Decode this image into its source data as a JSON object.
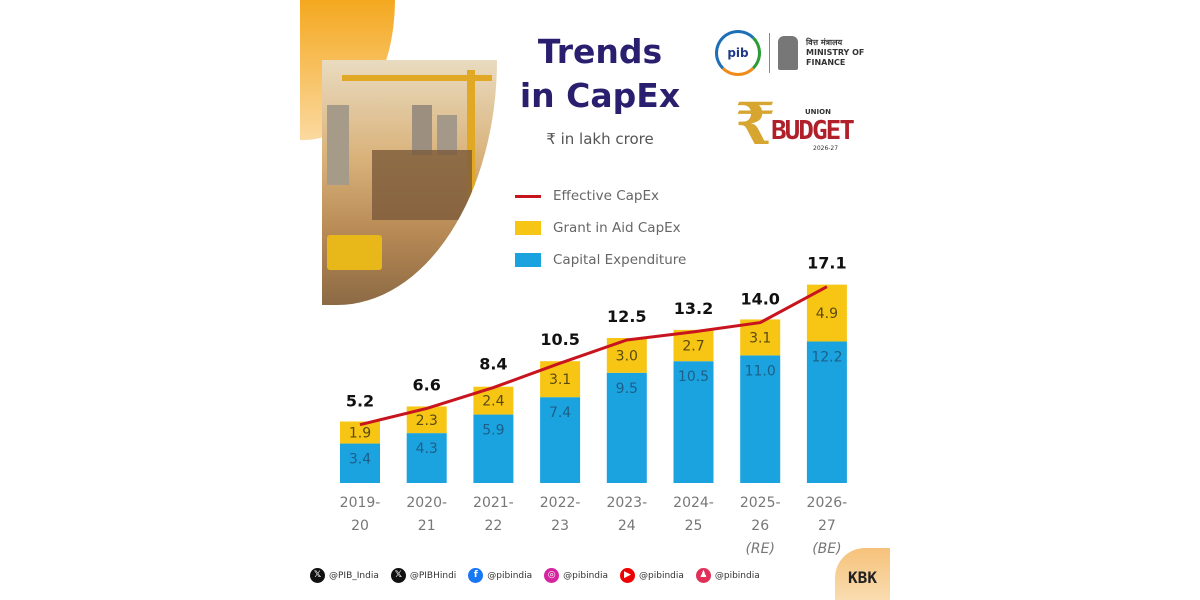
{
  "header": {
    "title_line1": "Trends",
    "title_line2": "in CapEx",
    "unit": "₹ in lakh crore"
  },
  "logos": {
    "pib": "pib",
    "ministry": "MINISTRY OF FINANCE",
    "ministry_hindi": "वित्त मंत्रालय",
    "budget_union": "UNION",
    "budget_word": "BUDGET",
    "budget_year": "2026-27"
  },
  "colors": {
    "capital": "#1ba3e0",
    "grant": "#f7c514",
    "effective": "#c8141e",
    "title": "#2a1f6e"
  },
  "chart_data": {
    "type": "bar",
    "stacked": true,
    "categories": [
      [
        "2019-",
        "20"
      ],
      [
        "2020-",
        "21"
      ],
      [
        "2021-",
        "22"
      ],
      [
        "2022-",
        "23"
      ],
      [
        "2023-",
        "24"
      ],
      [
        "2024-",
        "25"
      ],
      [
        "2025-",
        "26",
        "(RE)"
      ],
      [
        "2026-",
        "27",
        "(BE)"
      ]
    ],
    "series": [
      {
        "name": "Capital Expenditure",
        "type": "bar",
        "values": [
          3.4,
          4.3,
          5.9,
          7.4,
          9.5,
          10.5,
          11.0,
          12.2
        ]
      },
      {
        "name": "Grant in Aid CapEx",
        "type": "bar",
        "values": [
          1.9,
          2.3,
          2.4,
          3.1,
          3.0,
          2.7,
          3.1,
          4.9
        ]
      },
      {
        "name": "Effective CapEx",
        "type": "line",
        "values": [
          5.2,
          6.6,
          8.4,
          10.5,
          12.5,
          13.2,
          14.0,
          17.1
        ]
      }
    ],
    "value_labels": {
      "capital": [
        "3.4",
        "4.3",
        "5.9",
        "7.4",
        "9.5",
        "10.5",
        "11.0",
        "12.2"
      ],
      "grant": [
        "1.9",
        "2.3",
        "2.4",
        "3.1",
        "3.0",
        "2.7",
        "3.1",
        "4.9"
      ],
      "total": [
        "5.2",
        "6.6",
        "8.4",
        "10.5",
        "12.5",
        "13.2",
        "14.0",
        "17.1"
      ]
    },
    "ylim": [
      0,
      17.1
    ],
    "grid": false,
    "legend": "top-center",
    "title": "Trends in CapEx",
    "ylabel": "₹ in lakh crore"
  },
  "footer": {
    "handles": [
      {
        "icon": "x-icon",
        "text": "@PIB_India"
      },
      {
        "icon": "x-icon",
        "text": "@PIBHindi"
      },
      {
        "icon": "facebook-icon",
        "text": "@pibindia"
      },
      {
        "icon": "instagram-icon",
        "text": "@pibindia"
      },
      {
        "icon": "youtube-icon",
        "text": "@pibindia"
      },
      {
        "icon": "kooapp-icon",
        "text": "@pibindia"
      }
    ],
    "badge": "KBK"
  }
}
